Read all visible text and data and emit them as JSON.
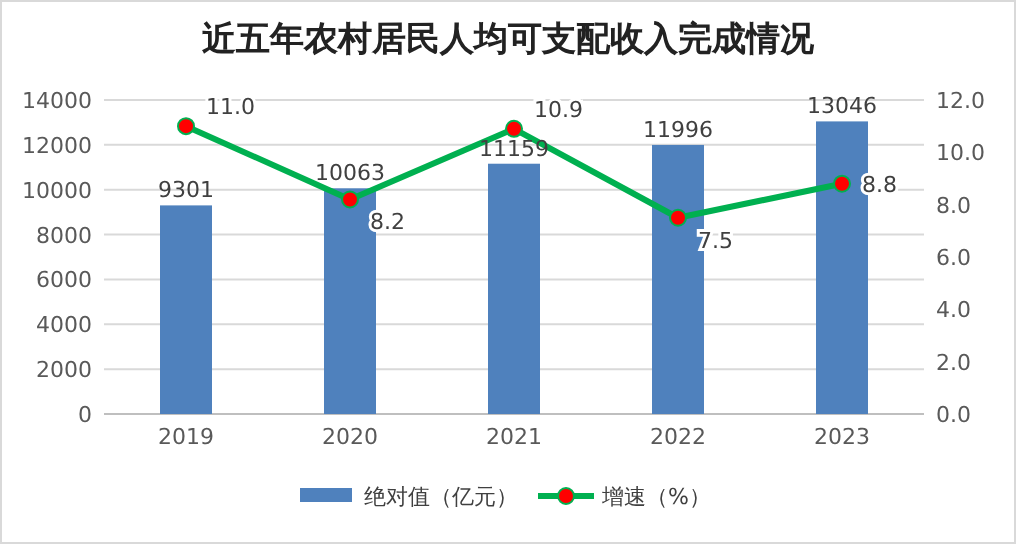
{
  "chart_data": {
    "type": "bar",
    "title": "近五年农村居民人均可支配收入完成情况",
    "categories": [
      "2019",
      "2020",
      "2021",
      "2022",
      "2023"
    ],
    "series": [
      {
        "name": "绝对值（亿元）",
        "color": "#4f81bd",
        "values": [
          9301,
          10063,
          11159,
          11996,
          13046
        ]
      },
      {
        "name": "增速（%）",
        "type": "line",
        "axis": "y2",
        "color": "#00b050",
        "marker": "circle",
        "values": [
          11.0,
          8.2,
          10.9,
          7.5,
          8.8
        ],
        "value_labels": [
          "11.0",
          "8.2",
          "10.9",
          "7.5",
          "8.8"
        ]
      }
    ],
    "ylim": [
      0,
      14000
    ],
    "yticks": [
      0,
      2000,
      4000,
      6000,
      8000,
      10000,
      12000,
      14000
    ],
    "y2lim": [
      0,
      12
    ],
    "y2ticks": [
      {
        "value": 0,
        "label": "0.0"
      },
      {
        "value": 2,
        "label": "2.0"
      },
      {
        "value": 4,
        "label": "4.0"
      },
      {
        "value": 6,
        "label": "6.0"
      },
      {
        "value": 8,
        "label": "8.0"
      },
      {
        "value": 10,
        "label": "10.0"
      },
      {
        "value": 12,
        "label": "12.0"
      }
    ],
    "grid": "y",
    "legend": "bottom",
    "data_labels": true
  }
}
